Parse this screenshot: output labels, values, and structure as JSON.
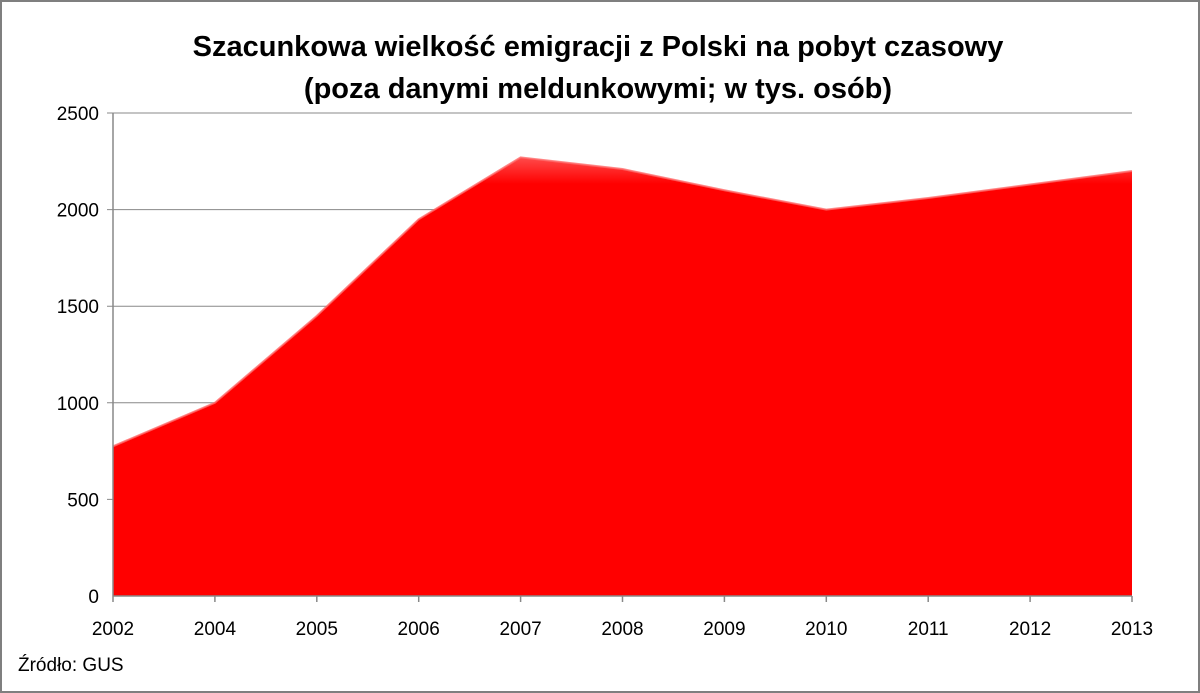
{
  "chart_data": {
    "type": "area",
    "title": "Szacunkowa wielkość emigracji z Polski na pobyt czasowy",
    "subtitle": "(poza danymi meldunkowymi; w tys. osób)",
    "categories": [
      "2002",
      "2004",
      "2005",
      "2006",
      "2007",
      "2008",
      "2009",
      "2010",
      "2011",
      "2012",
      "2013"
    ],
    "values": [
      775,
      1000,
      1450,
      1950,
      2270,
      2210,
      2100,
      2000,
      2060,
      2130,
      2200
    ],
    "ylim": [
      0,
      2500
    ],
    "yticks": [
      "0",
      "500",
      "1000",
      "1500",
      "2000",
      "2500"
    ],
    "grid": true,
    "color": "#ff0000"
  },
  "source": "Źródło: GUS"
}
